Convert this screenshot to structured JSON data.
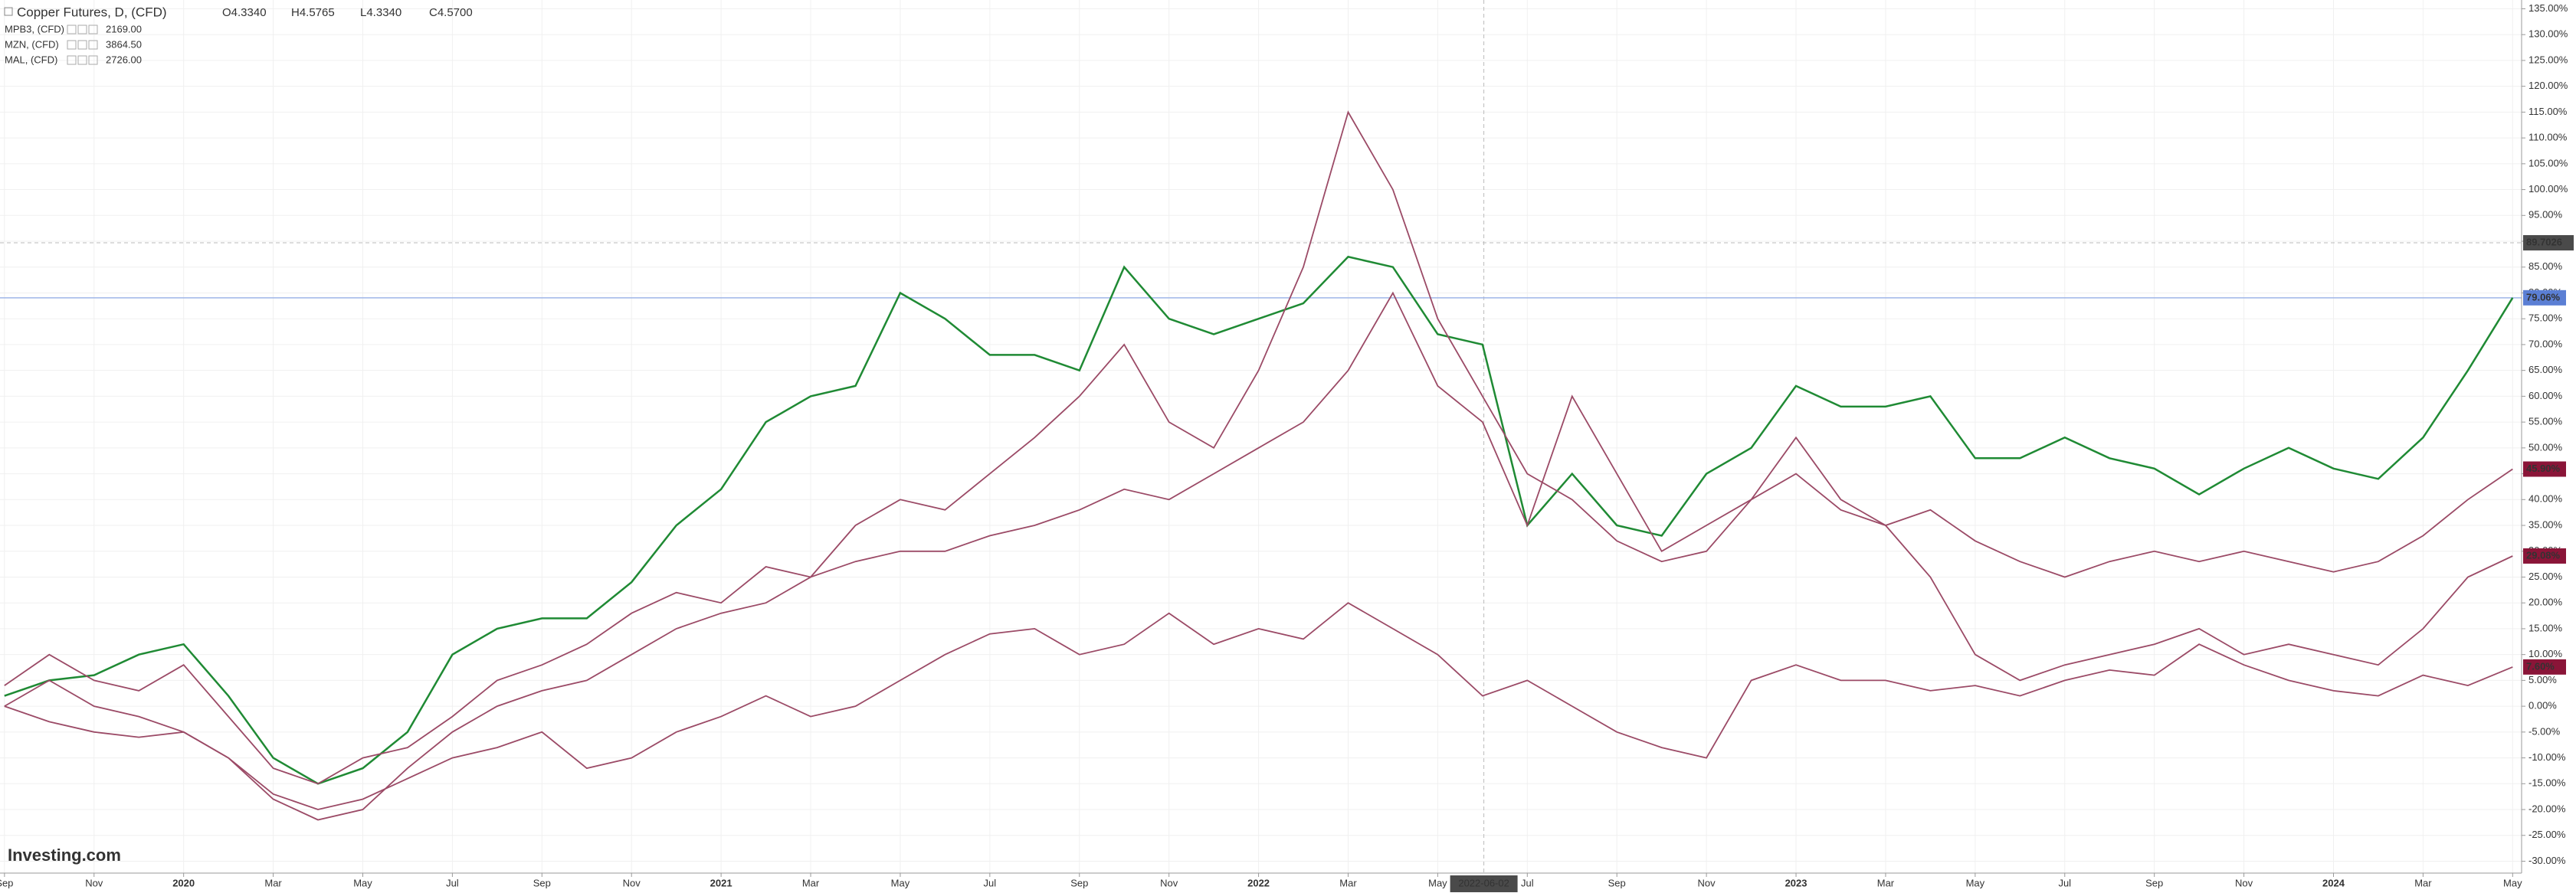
{
  "chart_data": {
    "type": "line",
    "title": "Copper Futures, D, (CFD)",
    "ohlc": [
      "O4.3340",
      "H4.5765",
      "L4.3340",
      "C4.5700"
    ],
    "compare": [
      {
        "name": "MPB3, (CFD)",
        "price": "2169.00"
      },
      {
        "name": "MZN, (CFD)",
        "price": "3864.50"
      },
      {
        "name": "MAL, (CFD)",
        "price": "2726.00"
      }
    ],
    "brand": "Investing.com",
    "x": [
      0,
      1,
      2,
      3,
      4,
      5,
      6,
      7,
      8,
      9,
      10,
      11,
      12,
      13,
      14,
      15,
      16,
      17,
      18,
      19,
      20,
      21,
      22,
      23,
      24,
      25,
      26,
      27,
      28,
      29,
      30,
      31,
      32,
      33,
      34,
      35,
      36,
      37,
      38,
      39,
      40,
      41,
      42,
      43,
      44,
      45,
      46,
      47,
      48,
      49,
      50,
      51,
      52,
      53,
      54,
      55,
      56
    ],
    "xlim": [
      -0.1,
      56.2
    ],
    "xticks": [
      {
        "value": 0,
        "label": "Sep"
      },
      {
        "value": 2,
        "label": "Nov"
      },
      {
        "value": 4,
        "label": "2020"
      },
      {
        "value": 6,
        "label": "Mar"
      },
      {
        "value": 8,
        "label": "May"
      },
      {
        "value": 10,
        "label": "Jul"
      },
      {
        "value": 12,
        "label": "Sep"
      },
      {
        "value": 14,
        "label": "Nov"
      },
      {
        "value": 16,
        "label": "2021"
      },
      {
        "value": 18,
        "label": "Mar"
      },
      {
        "value": 20,
        "label": "May"
      },
      {
        "value": 22,
        "label": "Jul"
      },
      {
        "value": 24,
        "label": "Sep"
      },
      {
        "value": 26,
        "label": "Nov"
      },
      {
        "value": 28,
        "label": "2022"
      },
      {
        "value": 30,
        "label": "Mar"
      },
      {
        "value": 32,
        "label": "May"
      },
      {
        "value": 34,
        "label": "Jul"
      },
      {
        "value": 36,
        "label": "Sep"
      },
      {
        "value": 38,
        "label": "Nov"
      },
      {
        "value": 40,
        "label": "2023"
      },
      {
        "value": 42,
        "label": "Mar"
      },
      {
        "value": 44,
        "label": "May"
      },
      {
        "value": 46,
        "label": "Jul"
      },
      {
        "value": 48,
        "label": "Sep"
      },
      {
        "value": 50,
        "label": "Nov"
      },
      {
        "value": 52,
        "label": "2024"
      },
      {
        "value": 54,
        "label": "Mar"
      },
      {
        "value": 56,
        "label": "May"
      }
    ],
    "ylim": [
      -32.3,
      136.7
    ],
    "yticks": [
      {
        "value": 135,
        "label": "135.00%"
      },
      {
        "value": 130,
        "label": "130.00%"
      },
      {
        "value": 125,
        "label": "125.00%"
      },
      {
        "value": 120,
        "label": "120.00%"
      },
      {
        "value": 115,
        "label": "115.00%"
      },
      {
        "value": 110,
        "label": "110.00%"
      },
      {
        "value": 105,
        "label": "105.00%"
      },
      {
        "value": 100,
        "label": "100.00%"
      },
      {
        "value": 95,
        "label": "95.00%"
      },
      {
        "value": 90,
        "label": "90.00%"
      },
      {
        "value": 85,
        "label": "85.00%"
      },
      {
        "value": 80,
        "label": "80.00%"
      },
      {
        "value": 75,
        "label": "75.00%"
      },
      {
        "value": 70,
        "label": "70.00%"
      },
      {
        "value": 65,
        "label": "65.00%"
      },
      {
        "value": 60,
        "label": "60.00%"
      },
      {
        "value": 55,
        "label": "55.00%"
      },
      {
        "value": 50,
        "label": "50.00%"
      },
      {
        "value": 45,
        "label": "45.00%"
      },
      {
        "value": 40,
        "label": "40.00%"
      },
      {
        "value": 35,
        "label": "35.00%"
      },
      {
        "value": 30,
        "label": "30.00%"
      },
      {
        "value": 25,
        "label": "25.00%"
      },
      {
        "value": 20,
        "label": "20.00%"
      },
      {
        "value": 15,
        "label": "15.00%"
      },
      {
        "value": 10,
        "label": "10.00%"
      },
      {
        "value": 5,
        "label": "5.00%"
      },
      {
        "value": 0,
        "label": "0.00%"
      },
      {
        "value": -5,
        "label": "-5.00%"
      },
      {
        "value": -10,
        "label": "-10.00%"
      },
      {
        "value": -15,
        "label": "-15.00%"
      },
      {
        "value": -20,
        "label": "-20.00%"
      },
      {
        "value": -25,
        "label": "-25.00%"
      },
      {
        "value": -30,
        "label": "-30.00%"
      }
    ],
    "grid": true,
    "crosshair": {
      "x": 33.03,
      "x_label": "2022-06-02",
      "y": 89.7026
    },
    "series": [
      {
        "name": "Copper Futures",
        "color": "#1f8a34",
        "label_color": "#5b7fd4",
        "end_label": "79.06%",
        "values": [
          2,
          5,
          6,
          10,
          12,
          2,
          -10,
          -15,
          -12,
          -5,
          10,
          15,
          17,
          17,
          24,
          35,
          42,
          55,
          60,
          62,
          80,
          75,
          68,
          68,
          65,
          85,
          75,
          72,
          75,
          78,
          87,
          85,
          72,
          70,
          35,
          45,
          35,
          33,
          45,
          50,
          62,
          58,
          58,
          60,
          48,
          48,
          52,
          48,
          46,
          41,
          46,
          50,
          46,
          44,
          52,
          65,
          79.06
        ]
      },
      {
        "name": "MPB3",
        "color": "#9b4a66",
        "label_color": "#8a1538",
        "end_label": "7.60%",
        "values": [
          0,
          5,
          0,
          -2,
          -5,
          -10,
          -17,
          -20,
          -18,
          -14,
          -10,
          -8,
          -5,
          -12,
          -10,
          -5,
          -2,
          2,
          -2,
          0,
          5,
          10,
          14,
          15,
          10,
          12,
          18,
          12,
          15,
          13,
          20,
          15,
          10,
          2,
          5,
          0,
          -5,
          -8,
          -10,
          5,
          8,
          5,
          5,
          3,
          4,
          2,
          5,
          7,
          6,
          12,
          8,
          5,
          3,
          2,
          6,
          4,
          7.6
        ]
      },
      {
        "name": "MZN",
        "color": "#9b4a66",
        "label_color": "#8a1538",
        "end_label": "45.90%",
        "values": [
          4,
          10,
          5,
          3,
          8,
          -2,
          -12,
          -15,
          -10,
          -8,
          -2,
          5,
          8,
          12,
          18,
          22,
          20,
          27,
          25,
          28,
          30,
          30,
          33,
          35,
          38,
          42,
          40,
          45,
          50,
          55,
          65,
          80,
          62,
          55,
          35,
          60,
          45,
          30,
          35,
          40,
          45,
          38,
          35,
          38,
          32,
          28,
          25,
          28,
          30,
          28,
          30,
          28,
          26,
          28,
          33,
          40,
          45.9
        ]
      },
      {
        "name": "MAL",
        "color": "#9b4a66",
        "label_color": "#8a1538",
        "end_label": "29.08%",
        "values": [
          0,
          -3,
          -5,
          -6,
          -5,
          -10,
          -18,
          -22,
          -20,
          -12,
          -5,
          0,
          3,
          5,
          10,
          15,
          18,
          20,
          25,
          35,
          40,
          38,
          45,
          52,
          60,
          70,
          55,
          50,
          65,
          85,
          115,
          100,
          75,
          60,
          45,
          40,
          32,
          28,
          30,
          40,
          52,
          40,
          35,
          25,
          10,
          5,
          8,
          10,
          12,
          15,
          10,
          12,
          10,
          8,
          15,
          25,
          29.08
        ]
      }
    ]
  }
}
